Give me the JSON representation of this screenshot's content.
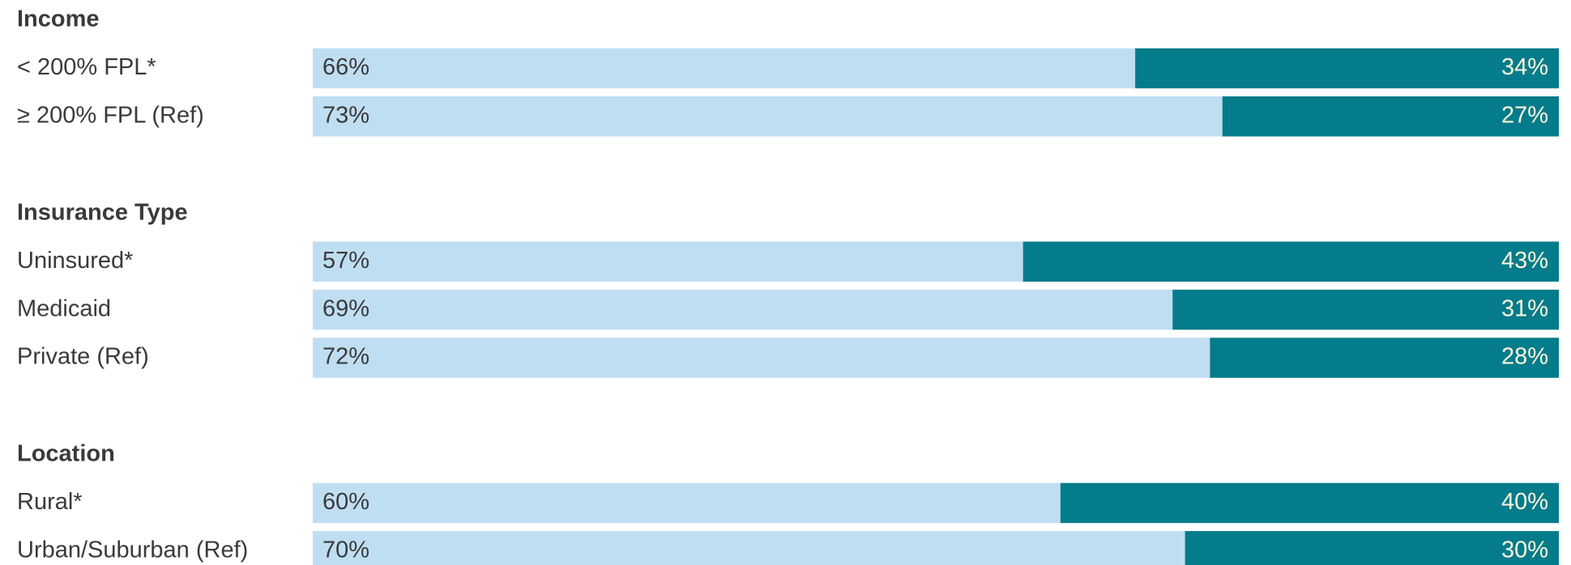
{
  "chart_data": [
    {
      "type": "bar",
      "stacked": true,
      "orientation": "horizontal",
      "title": "Income",
      "categories": [
        "< 200% FPL*",
        "≥ 200% FPL (Ref)"
      ],
      "xlim": [
        0,
        100
      ],
      "series": [
        {
          "color": "#bfdef2",
          "values": [
            66,
            73
          ],
          "value_labels": [
            "66%",
            "73%"
          ]
        },
        {
          "color": "#057c8b",
          "values": [
            34,
            27
          ],
          "value_labels": [
            "34%",
            "27%"
          ]
        }
      ]
    },
    {
      "type": "bar",
      "stacked": true,
      "orientation": "horizontal",
      "title": "Insurance Type",
      "categories": [
        "Uninsured*",
        "Medicaid",
        "Private (Ref)"
      ],
      "xlim": [
        0,
        100
      ],
      "series": [
        {
          "color": "#bfdef2",
          "values": [
            57,
            69,
            72
          ],
          "value_labels": [
            "57%",
            "69%",
            "72%"
          ]
        },
        {
          "color": "#057c8b",
          "values": [
            43,
            31,
            28
          ],
          "value_labels": [
            "43%",
            "31%",
            "28%"
          ]
        }
      ]
    },
    {
      "type": "bar",
      "stacked": true,
      "orientation": "horizontal",
      "title": "Location",
      "categories": [
        "Rural*",
        "Urban/Suburban (Ref)"
      ],
      "xlim": [
        0,
        100
      ],
      "series": [
        {
          "color": "#bfdef2",
          "values": [
            60,
            70
          ],
          "value_labels": [
            "60%",
            "70%"
          ]
        },
        {
          "color": "#057c8b",
          "values": [
            40,
            30
          ],
          "value_labels": [
            "40%",
            "30%"
          ]
        }
      ]
    }
  ]
}
